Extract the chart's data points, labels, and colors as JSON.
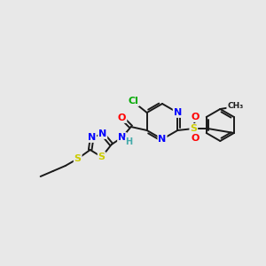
{
  "bg_color": "#e8e8e8",
  "bond_color": "#1a1a1a",
  "atom_colors": {
    "N": "#0000ff",
    "O": "#ff0000",
    "S": "#cccc00",
    "Cl": "#00aa00",
    "C": "#1a1a1a",
    "H": "#44aaaa"
  }
}
